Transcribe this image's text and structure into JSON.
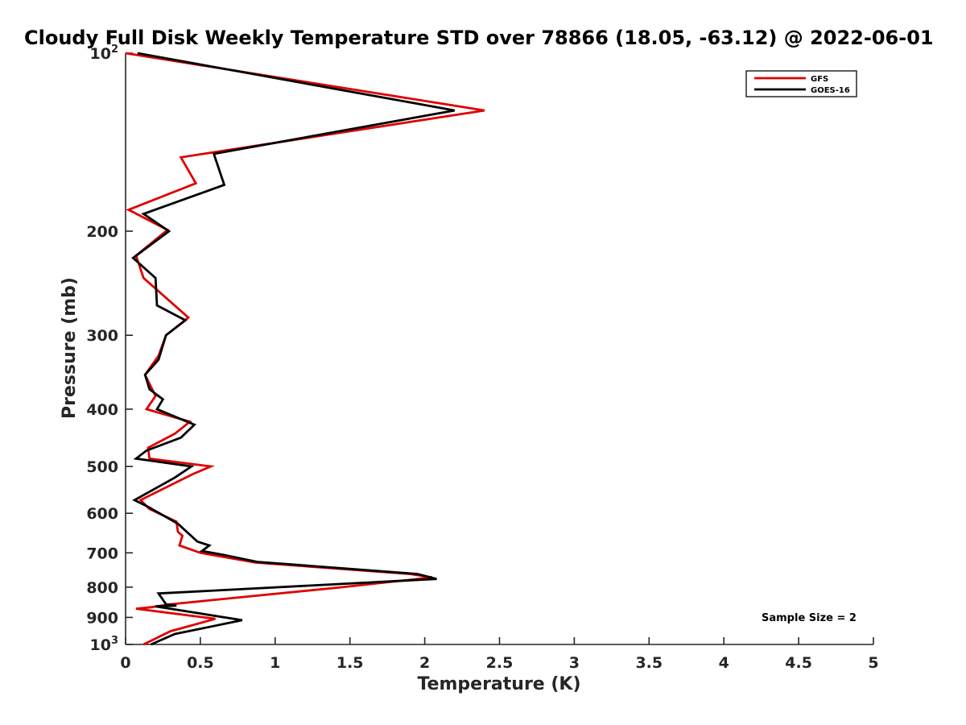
{
  "chart_data": {
    "type": "line",
    "title": "Cloudy Full Disk Weekly Temperature STD over 78866 (18.05, -63.12) @ 2022-06-01",
    "xlabel": "Temperature (K)",
    "ylabel": "Pressure (mb)",
    "xlim": [
      0,
      5
    ],
    "ylim": [
      100,
      1000
    ],
    "y_scale": "log",
    "y_reversed": true,
    "x_ticks": [
      0,
      0.5,
      1,
      1.5,
      2,
      2.5,
      3,
      3.5,
      4,
      4.5,
      5
    ],
    "x_tick_labels": [
      "0",
      "0.5",
      "1",
      "1.5",
      "2",
      "2.5",
      "3",
      "3.5",
      "4",
      "4.5",
      "5"
    ],
    "y_ticks": [
      {
        "value": 100,
        "base": "10",
        "exp": "2"
      },
      {
        "value": 200,
        "label": "200"
      },
      {
        "value": 300,
        "label": "300"
      },
      {
        "value": 400,
        "label": "400"
      },
      {
        "value": 500,
        "label": "500"
      },
      {
        "value": 600,
        "label": "600"
      },
      {
        "value": 700,
        "label": "700"
      },
      {
        "value": 800,
        "label": "800"
      },
      {
        "value": 900,
        "label": "900"
      },
      {
        "value": 1000,
        "base": "10",
        "exp": "3"
      }
    ],
    "grid": false,
    "legend_position": "top-right",
    "annotation": "Sample Size = 2",
    "series": [
      {
        "name": "GFS",
        "color": "#e00000",
        "points": [
          [
            0.0,
            100
          ],
          [
            2.4,
            125
          ],
          [
            0.37,
            150
          ],
          [
            0.47,
            166
          ],
          [
            0.02,
            184
          ],
          [
            0.28,
            199
          ],
          [
            0.07,
            220
          ],
          [
            0.12,
            240
          ],
          [
            0.42,
            280
          ],
          [
            0.27,
            300
          ],
          [
            0.22,
            325
          ],
          [
            0.13,
            350
          ],
          [
            0.2,
            380
          ],
          [
            0.14,
            400
          ],
          [
            0.43,
            420
          ],
          [
            0.33,
            440
          ],
          [
            0.15,
            465
          ],
          [
            0.16,
            485
          ],
          [
            0.57,
            500
          ],
          [
            0.45,
            515
          ],
          [
            0.1,
            570
          ],
          [
            0.16,
            590
          ],
          [
            0.34,
            620
          ],
          [
            0.35,
            645
          ],
          [
            0.38,
            655
          ],
          [
            0.36,
            680
          ],
          [
            0.5,
            700
          ],
          [
            0.87,
            727
          ],
          [
            1.9,
            760
          ],
          [
            2.05,
            770
          ],
          [
            1.45,
            800
          ],
          [
            0.3,
            855
          ],
          [
            0.17,
            865
          ],
          [
            0.07,
            870
          ],
          [
            0.6,
            905
          ],
          [
            0.3,
            950
          ],
          [
            0.12,
            1000
          ]
        ]
      },
      {
        "name": "GOES-16",
        "color": "#000000",
        "points": [
          [
            0.08,
            100
          ],
          [
            2.2,
            125
          ],
          [
            0.59,
            148
          ],
          [
            0.66,
            167
          ],
          [
            0.12,
            187
          ],
          [
            0.29,
            200
          ],
          [
            0.05,
            222
          ],
          [
            0.2,
            240
          ],
          [
            0.21,
            267
          ],
          [
            0.4,
            283
          ],
          [
            0.27,
            300
          ],
          [
            0.22,
            330
          ],
          [
            0.13,
            350
          ],
          [
            0.16,
            370
          ],
          [
            0.25,
            385
          ],
          [
            0.21,
            400
          ],
          [
            0.46,
            425
          ],
          [
            0.37,
            447
          ],
          [
            0.14,
            470
          ],
          [
            0.07,
            485
          ],
          [
            0.44,
            500
          ],
          [
            0.33,
            522
          ],
          [
            0.06,
            570
          ],
          [
            0.15,
            585
          ],
          [
            0.35,
            625
          ],
          [
            0.48,
            670
          ],
          [
            0.56,
            680
          ],
          [
            0.51,
            695
          ],
          [
            0.65,
            705
          ],
          [
            0.88,
            725
          ],
          [
            1.95,
            760
          ],
          [
            2.08,
            775
          ],
          [
            0.22,
            820
          ],
          [
            0.27,
            855
          ],
          [
            0.34,
            860
          ],
          [
            0.2,
            862
          ],
          [
            0.78,
            910
          ],
          [
            0.33,
            960
          ],
          [
            0.17,
            1000
          ]
        ]
      }
    ]
  }
}
